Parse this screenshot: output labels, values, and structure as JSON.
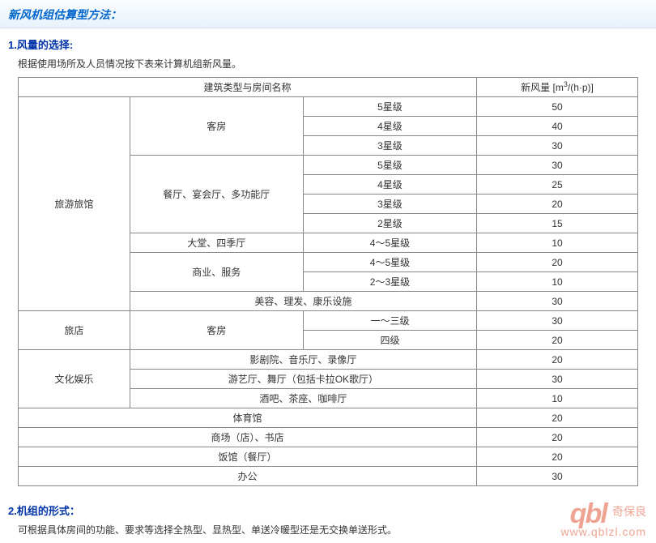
{
  "section_title": "新风机组估算型方法：",
  "part1": {
    "title": "1.风量的选择:",
    "desc": "根据使用场所及人员情况按下表来计算机组新风量。",
    "header_left": "建筑类型与房间名称",
    "header_right_prefix": "新风量 [m",
    "header_right_sup": "3",
    "header_right_suffix": "/(h·p)]",
    "rows": [
      {
        "cat1": "旅游旅馆",
        "c1rs": 11,
        "cat2": "客房",
        "c2rs": 3,
        "level": "5星级",
        "val": "50"
      },
      {
        "level": "4星级",
        "val": "40"
      },
      {
        "level": "3星级",
        "val": "30"
      },
      {
        "cat2": "餐厅、宴会厅、多功能厅",
        "c2rs": 4,
        "level": "5星级",
        "val": "30"
      },
      {
        "level": "4星级",
        "val": "25"
      },
      {
        "level": "3星级",
        "val": "20"
      },
      {
        "level": "2星级",
        "val": "15"
      },
      {
        "cat2": "大堂、四季厅",
        "c2rs": 1,
        "level": "4～5星级",
        "val": "10"
      },
      {
        "cat2": "商业、服务",
        "c2rs": 2,
        "level": "4～5星级",
        "val": "20"
      },
      {
        "level": "2～3星级",
        "val": "10"
      },
      {
        "cat2": "美容、理发、康乐设施",
        "c2cs": 2,
        "val": "30"
      },
      {
        "cat1": "旅店",
        "c1rs": 2,
        "cat2": "客房",
        "c2rs": 2,
        "level": "一～三级",
        "val": "30"
      },
      {
        "level": "四级",
        "val": "20"
      },
      {
        "cat1": "文化娱乐",
        "c1rs": 3,
        "cat2": "影剧院、音乐厅、录像厅",
        "c2cs": 2,
        "val": "20"
      },
      {
        "cat2": "游艺厅、舞厅（包括卡拉OK歌厅）",
        "c2cs": 2,
        "val": "30"
      },
      {
        "cat2": "酒吧、茶座、咖啡厅",
        "c2cs": 2,
        "val": "10"
      },
      {
        "cat1": "体育馆",
        "c1cs": 3,
        "val": "20"
      },
      {
        "cat1": "商场（店）、书店",
        "c1cs": 3,
        "val": "20"
      },
      {
        "cat1": "饭馆（餐厅）",
        "c1cs": 3,
        "val": "20"
      },
      {
        "cat1": "办公",
        "c1cs": 3,
        "val": "30"
      }
    ]
  },
  "part2": {
    "title": "2.机组的形式：",
    "desc": "可根据具体房间的功能、要求等选择全热型、显热型、单送冷暖型还是无交换单送形式。"
  },
  "watermark": {
    "logo": "qbl",
    "cn": "奇保良",
    "url": "www.qblzl.com"
  }
}
